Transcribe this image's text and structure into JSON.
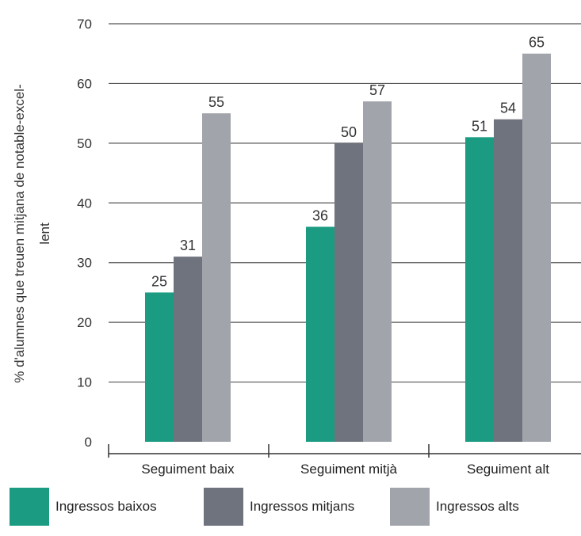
{
  "chart_data": {
    "type": "bar",
    "categories": [
      "Seguiment baix",
      "Seguiment mitjà",
      "Seguiment alt"
    ],
    "series": [
      {
        "name": "Ingressos baixos",
        "values": [
          25,
          36,
          51
        ],
        "color": "#1a9b82"
      },
      {
        "name": "Ingressos mitjans",
        "values": [
          31,
          50,
          54
        ],
        "color": "#6f737d"
      },
      {
        "name": "Ingressos alts",
        "values": [
          55,
          57,
          65
        ],
        "color": "#a1a4ab"
      }
    ],
    "ylabel": [
      "% d'alumnes que treuen mitjana de notable-excel-",
      "lent"
    ],
    "ylim": [
      0,
      70
    ],
    "yticks": [
      0,
      10,
      20,
      30,
      40,
      50,
      60,
      70
    ],
    "grid": true,
    "legend_position": "bottom"
  }
}
